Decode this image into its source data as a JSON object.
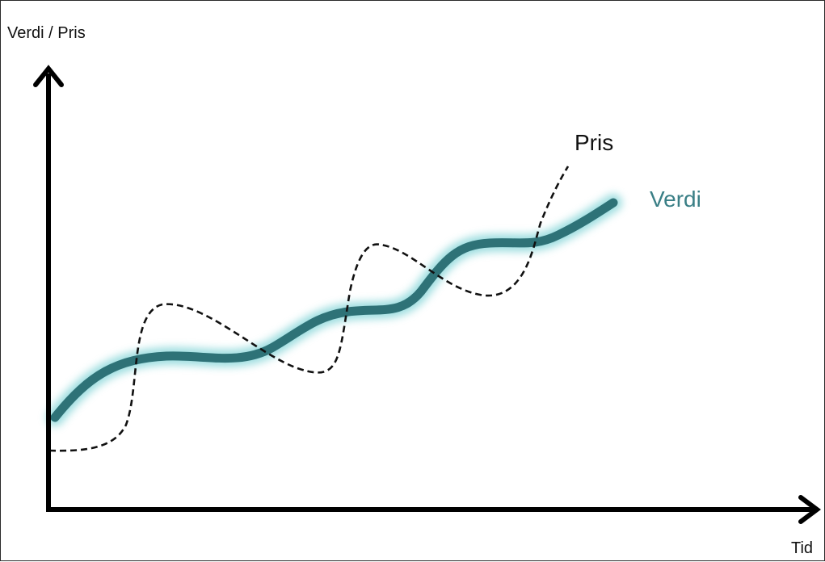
{
  "axes": {
    "y_label": "Verdi / Pris",
    "x_label": "Tid"
  },
  "series": {
    "pris": {
      "name": "Pris",
      "style": "dashed",
      "color": "#111111"
    },
    "verdi": {
      "name": "Verdi",
      "style": "solid-glow",
      "color": "#2e7277",
      "label_color": "#3a7f86",
      "glow_color": "#7fd3d6"
    }
  }
}
